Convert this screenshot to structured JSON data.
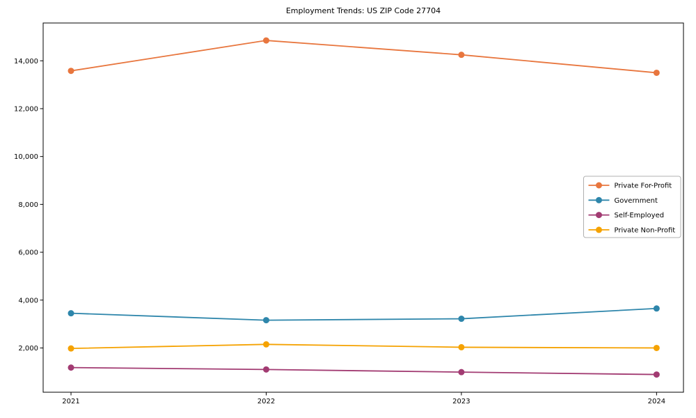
{
  "chart_data": {
    "type": "line",
    "title": "Employment Trends: US ZIP Code 27704",
    "categories": [
      "2021",
      "2022",
      "2023",
      "2024"
    ],
    "series": [
      {
        "name": "Private For-Profit",
        "color": "#e8763e",
        "values": [
          13580,
          14850,
          14250,
          13500
        ]
      },
      {
        "name": "Government",
        "color": "#2e86ab",
        "values": [
          3450,
          3160,
          3220,
          3650
        ]
      },
      {
        "name": "Self-Employed",
        "color": "#a23b72",
        "values": [
          1180,
          1100,
          990,
          890
        ]
      },
      {
        "name": "Private Non-Profit",
        "color": "#f5a201",
        "values": [
          1980,
          2150,
          2030,
          2000
        ]
      }
    ],
    "xlabel": "",
    "ylabel": "",
    "ylim": [
      150,
      15580
    ],
    "yticks": [
      2000,
      4000,
      6000,
      8000,
      10000,
      12000,
      14000
    ],
    "ytick_labels": [
      "2,000",
      "4,000",
      "6,000",
      "8,000",
      "10,000",
      "12,000",
      "14,000"
    ],
    "grid": false,
    "legend_position": "center-right",
    "axis_color": "#000000",
    "legend_border_color": "#b0b0b0",
    "background": "#ffffff"
  }
}
